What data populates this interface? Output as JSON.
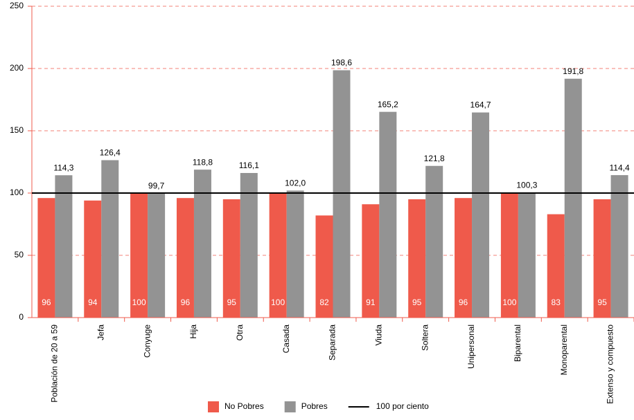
{
  "chart_data": {
    "type": "bar",
    "categories": [
      "Población de 20 a 59",
      "Jefa",
      "Conyuge",
      "Hija",
      "Otra",
      "Casada",
      "Separada",
      "Viuda",
      "Soltera",
      "Unipersonal",
      "Biparental",
      "Monoparental",
      "Extenso y compuesto"
    ],
    "series": [
      {
        "name": "No Pobres",
        "color": "#ef5a4b",
        "values": [
          96,
          94,
          100,
          96,
          95,
          100,
          82,
          91,
          95,
          96,
          100,
          83,
          95
        ]
      },
      {
        "name": "Pobres",
        "color": "#939393",
        "values": [
          114.3,
          126.4,
          99.7,
          118.8,
          116.1,
          102.0,
          198.6,
          165.2,
          121.8,
          164.7,
          100.3,
          191.8,
          114.4
        ],
        "value_labels": [
          "114,3",
          "126,4",
          "99,7",
          "118,8",
          "116,1",
          "102,0",
          "198,6",
          "165,2",
          "121,8",
          "164,7",
          "100,3",
          "191,8",
          "114,4"
        ]
      }
    ],
    "reference_line": {
      "name": "100 por ciento",
      "value": 100,
      "color": "#000000"
    },
    "ylim": [
      0,
      250
    ],
    "yticks": [
      0,
      50,
      100,
      150,
      200,
      250
    ],
    "grid": true
  }
}
